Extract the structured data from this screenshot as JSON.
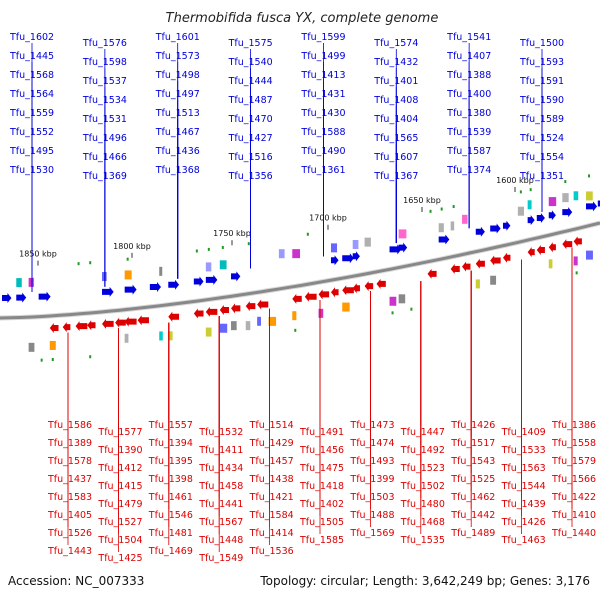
{
  "title": "Thermobifida fusca YX, complete genome",
  "accession": "Accession: NC_007333",
  "topology": "Topology: circular; Length: 3,642,249 bp; Genes: 3,176",
  "colors": {
    "forward": "#0000dd",
    "reverse": "#dd0000",
    "backbone": "#888888",
    "marker": "#229922"
  },
  "ticks": [
    "1850 kbp",
    "1800 kbp",
    "1750 kbp",
    "1700 kbp",
    "1650 kbp",
    "1600 kbp"
  ],
  "forward_genes": [
    "Tfu_1602",
    "Tfu_1576",
    "Tfu_1601",
    "Tfu_1575",
    "Tfu_1599",
    "Tfu_1574",
    "Tfu_1541",
    "Tfu_1500",
    "Tfu_1445",
    "Tfu_1598",
    "Tfu_1573",
    "Tfu_1540",
    "Tfu_1499",
    "Tfu_1432",
    "Tfu_1407",
    "Tfu_1593",
    "Tfu_1568",
    "Tfu_1537",
    "Tfu_1498",
    "Tfu_1444",
    "Tfu_1413",
    "Tfu_1401",
    "Tfu_1388",
    "Tfu_1591",
    "Tfu_1564",
    "Tfu_1534",
    "Tfu_1497",
    "Tfu_1487",
    "Tfu_1431",
    "Tfu_1408",
    "Tfu_1400",
    "Tfu_1590",
    "Tfu_1559",
    "Tfu_1531",
    "Tfu_1513",
    "Tfu_1470",
    "Tfu_1430",
    "Tfu_1404",
    "Tfu_1380",
    "Tfu_1589",
    "Tfu_1552",
    "Tfu_1496",
    "Tfu_1467",
    "Tfu_1427",
    "Tfu_1588",
    "Tfu_1565",
    "Tfu_1539",
    "Tfu_1524",
    "Tfu_1495",
    "Tfu_1466",
    "Tfu_1436",
    "Tfu_1516",
    "Tfu_1490",
    "Tfu_1607",
    "Tfu_1587",
    "Tfu_1554",
    "Tfu_1530",
    "Tfu_1369",
    "Tfu_1368",
    "Tfu_1356",
    "Tfu_1361",
    "Tfu_1367",
    "Tfu_1374",
    "Tfu_1351"
  ],
  "reverse_genes": [
    "Tfu_1586",
    "Tfu_1577",
    "Tfu_1557",
    "Tfu_1532",
    "Tfu_1514",
    "Tfu_1491",
    "Tfu_1473",
    "Tfu_1447",
    "Tfu_1426",
    "Tfu_1409",
    "Tfu_1386",
    "Tfu_1389",
    "Tfu_1390",
    "Tfu_1394",
    "Tfu_1411",
    "Tfu_1429",
    "Tfu_1456",
    "Tfu_1474",
    "Tfu_1492",
    "Tfu_1517",
    "Tfu_1533",
    "Tfu_1558",
    "Tfu_1578",
    "Tfu_1412",
    "Tfu_1395",
    "Tfu_1434",
    "Tfu_1457",
    "Tfu_1475",
    "Tfu_1493",
    "Tfu_1523",
    "Tfu_1543",
    "Tfu_1563",
    "Tfu_1579",
    "Tfu_1437",
    "Tfu_1415",
    "Tfu_1398",
    "Tfu_1458",
    "Tfu_1438",
    "Tfu_1418",
    "Tfu_1399",
    "Tfu_1502",
    "Tfu_1525",
    "Tfu_1544",
    "Tfu_1566",
    "Tfu_1583",
    "Tfu_1479",
    "Tfu_1461",
    "Tfu_1441",
    "Tfu_1421",
    "Tfu_1402",
    "Tfu_1503",
    "Tfu_1480",
    "Tfu_1462",
    "Tfu_1439",
    "Tfu_1422",
    "Tfu_1405",
    "Tfu_1527",
    "Tfu_1546",
    "Tfu_1567",
    "Tfu_1584",
    "Tfu_1505",
    "Tfu_1488",
    "Tfu_1468",
    "Tfu_1442",
    "Tfu_1426",
    "Tfu_1410",
    "Tfu_1526",
    "Tfu_1504",
    "Tfu_1481",
    "Tfu_1448",
    "Tfu_1414",
    "Tfu_1585",
    "Tfu_1569",
    "Tfu_1535",
    "Tfu_1489",
    "Tfu_1463",
    "Tfu_1440",
    "Tfu_1443",
    "Tfu_1425",
    "Tfu_1469",
    "Tfu_1549",
    "Tfu_1536"
  ]
}
